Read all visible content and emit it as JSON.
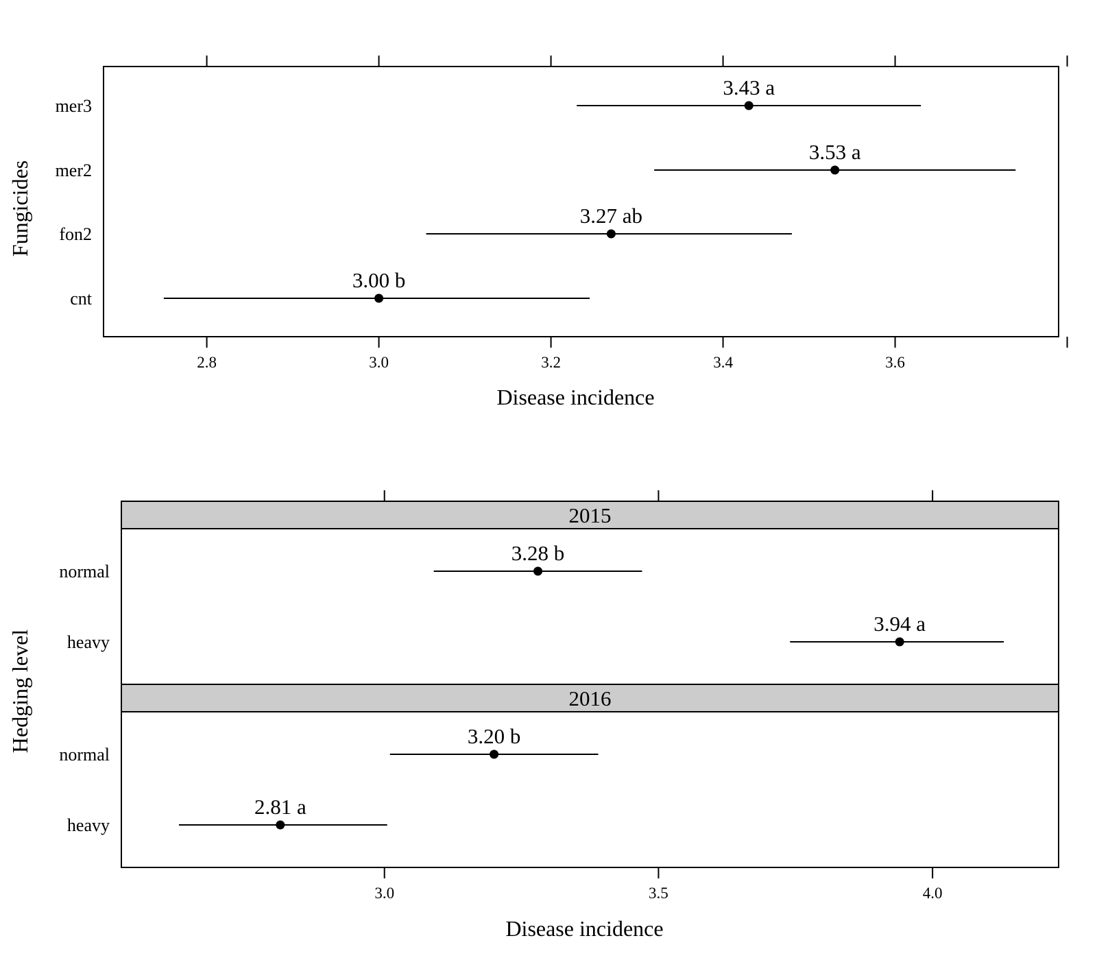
{
  "chart_data": [
    {
      "type": "dot-interval",
      "xlabel": "Disease incidence",
      "ylabel": "Fungicides",
      "xlim": [
        2.68,
        3.79
      ],
      "xticks": [
        "2.8",
        "3.0",
        "3.2",
        "3.4",
        "3.6"
      ],
      "panels": [
        {
          "strip": "",
          "rows": [
            {
              "category": "mer3",
              "estimate": 3.43,
              "lower": 3.23,
              "upper": 3.63,
              "label": "3.43 a"
            },
            {
              "category": "mer2",
              "estimate": 3.53,
              "lower": 3.32,
              "upper": 3.74,
              "label": "3.53 a"
            },
            {
              "category": "fon2",
              "estimate": 3.27,
              "lower": 3.055,
              "upper": 3.48,
              "label": "3.27 ab"
            },
            {
              "category": "cnt",
              "estimate": 3.0,
              "lower": 2.75,
              "upper": 3.245,
              "label": "3.00 b"
            }
          ]
        }
      ]
    },
    {
      "type": "dot-interval",
      "xlabel": "Disease incidence",
      "ylabel": "Hedging level",
      "xlim": [
        2.52,
        4.23
      ],
      "xticks": [
        "3.0",
        "3.5",
        "4.0"
      ],
      "panels": [
        {
          "strip": "2015",
          "rows": [
            {
              "category": "normal",
              "estimate": 3.28,
              "lower": 3.09,
              "upper": 3.47,
              "label": "3.28 b"
            },
            {
              "category": "heavy",
              "estimate": 3.94,
              "lower": 3.74,
              "upper": 4.13,
              "label": "3.94 a"
            }
          ]
        },
        {
          "strip": "2016",
          "rows": [
            {
              "category": "normal",
              "estimate": 3.2,
              "lower": 3.01,
              "upper": 3.39,
              "label": "3.20 b"
            },
            {
              "category": "heavy",
              "estimate": 2.81,
              "lower": 2.625,
              "upper": 3.005,
              "label": "2.81 a"
            }
          ]
        }
      ]
    }
  ]
}
